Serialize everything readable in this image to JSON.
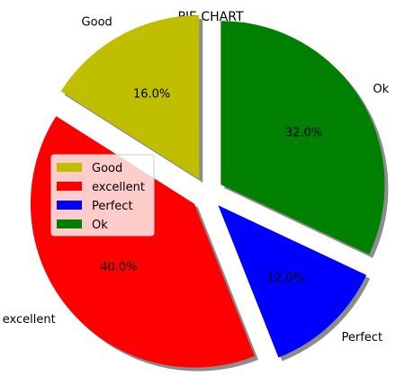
{
  "chart_data": {
    "type": "pie",
    "title": "PIE CHART",
    "autopct_format": "{v}%",
    "shadow": true,
    "exploded": true,
    "start_angle_deg": 90,
    "direction": "counterclockwise",
    "legend_position": "center-left",
    "slices": [
      {
        "label": "Good",
        "value": 16.0,
        "color": "#bfbf00"
      },
      {
        "label": "excellent",
        "value": 40.0,
        "color": "#ff0000"
      },
      {
        "label": "Perfect",
        "value": 12.0,
        "color": "#0000ff"
      },
      {
        "label": "Ok",
        "value": 32.0,
        "color": "#008000"
      }
    ],
    "legend": [
      "Good",
      "excellent",
      "Perfect",
      "Ok"
    ]
  }
}
